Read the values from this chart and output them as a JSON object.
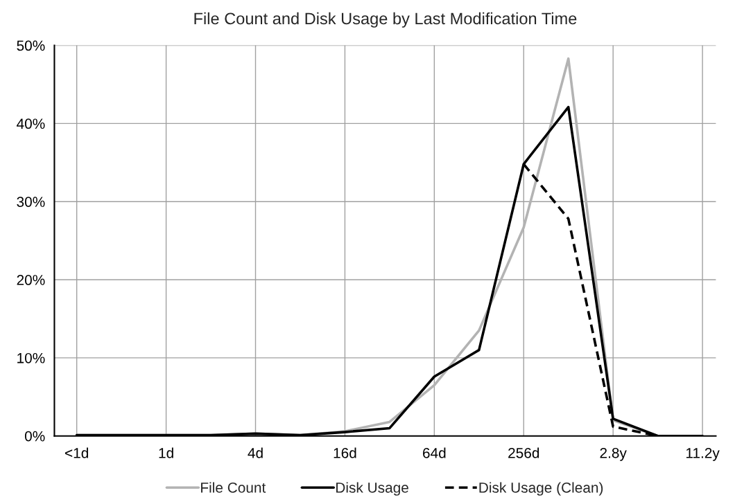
{
  "chart_data": {
    "type": "line",
    "title": "File Count and Disk Usage by Last Modification Time",
    "categories": [
      "<1d",
      null,
      "1d",
      null,
      "4d",
      null,
      "16d",
      null,
      "64d",
      null,
      "256d",
      null,
      "2.8y",
      null,
      "11.2y"
    ],
    "series": [
      {
        "name": "File Count",
        "color": "#b3b3b3",
        "line_style": "solid",
        "values": [
          0.1,
          0.1,
          0.1,
          0.1,
          0.3,
          0.1,
          0.6,
          1.8,
          6.5,
          13.5,
          26.7,
          48.3,
          2.0,
          0,
          0
        ]
      },
      {
        "name": "Disk Usage",
        "color": "#000000",
        "line_style": "solid",
        "values": [
          0.1,
          0.1,
          0.1,
          0.1,
          0.3,
          0.1,
          0.5,
          1.0,
          7.6,
          11.0,
          34.8,
          42.1,
          2.2,
          0,
          0
        ]
      },
      {
        "name": "Disk Usage (Clean)",
        "color": "#000000",
        "line_style": "dashed",
        "values": [
          null,
          null,
          null,
          null,
          null,
          null,
          null,
          null,
          null,
          null,
          34.8,
          27.8,
          1.2,
          0,
          0
        ]
      }
    ],
    "ylim": [
      0,
      50
    ],
    "yticks": [
      {
        "value": 0,
        "label": "0%"
      },
      {
        "value": 10,
        "label": "10%"
      },
      {
        "value": 20,
        "label": "20%"
      },
      {
        "value": 30,
        "label": "30%"
      },
      {
        "value": 40,
        "label": "40%"
      },
      {
        "value": 50,
        "label": "50%"
      }
    ],
    "grid": true,
    "legend": "bottom",
    "marker": "none"
  }
}
